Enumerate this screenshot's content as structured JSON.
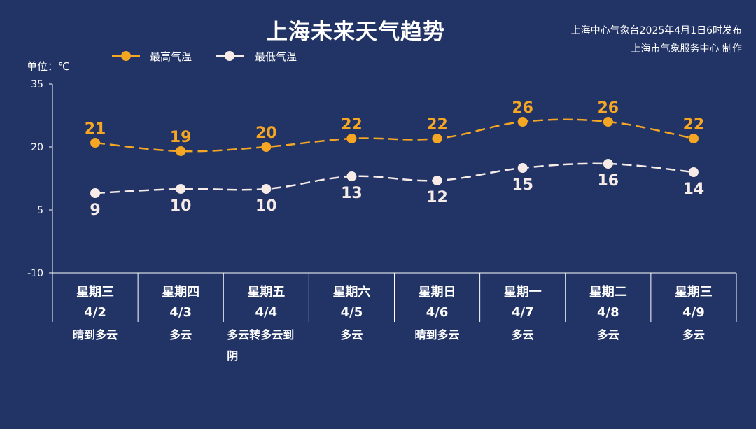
{
  "chart_data": {
    "type": "line",
    "title": "上海未来天气趋势",
    "source_line1": "上海中心气象台2025年4月1日6时发布",
    "source_line2": "上海市气象服务中心 制作",
    "unit_label": "单位：℃",
    "ylim": [
      -10,
      35
    ],
    "yticks": [
      "35",
      "20",
      "5",
      "-10"
    ],
    "categories": [
      {
        "weekday": "星期三",
        "date": "4/2",
        "weather": [
          "晴到多云"
        ]
      },
      {
        "weekday": "星期四",
        "date": "4/3",
        "weather": [
          "多云"
        ]
      },
      {
        "weekday": "星期五",
        "date": "4/4",
        "weather": [
          "多云转多云到",
          "阴"
        ]
      },
      {
        "weekday": "星期六",
        "date": "4/5",
        "weather": [
          "多云"
        ]
      },
      {
        "weekday": "星期日",
        "date": "4/6",
        "weather": [
          "晴到多云"
        ]
      },
      {
        "weekday": "星期一",
        "date": "4/7",
        "weather": [
          "多云"
        ]
      },
      {
        "weekday": "星期二",
        "date": "4/8",
        "weather": [
          "多云"
        ]
      },
      {
        "weekday": "星期三",
        "date": "4/9",
        "weather": [
          "多云"
        ]
      }
    ],
    "series": [
      {
        "name": "最高气温",
        "color": "#f5a623",
        "values": [
          21,
          19,
          20,
          22,
          22,
          26,
          26,
          22
        ]
      },
      {
        "name": "最低气温",
        "color": "#f7ebe7",
        "values": [
          9,
          10,
          10,
          13,
          12,
          15,
          16,
          14
        ]
      }
    ],
    "legend_position": "top-left",
    "grid": false
  }
}
